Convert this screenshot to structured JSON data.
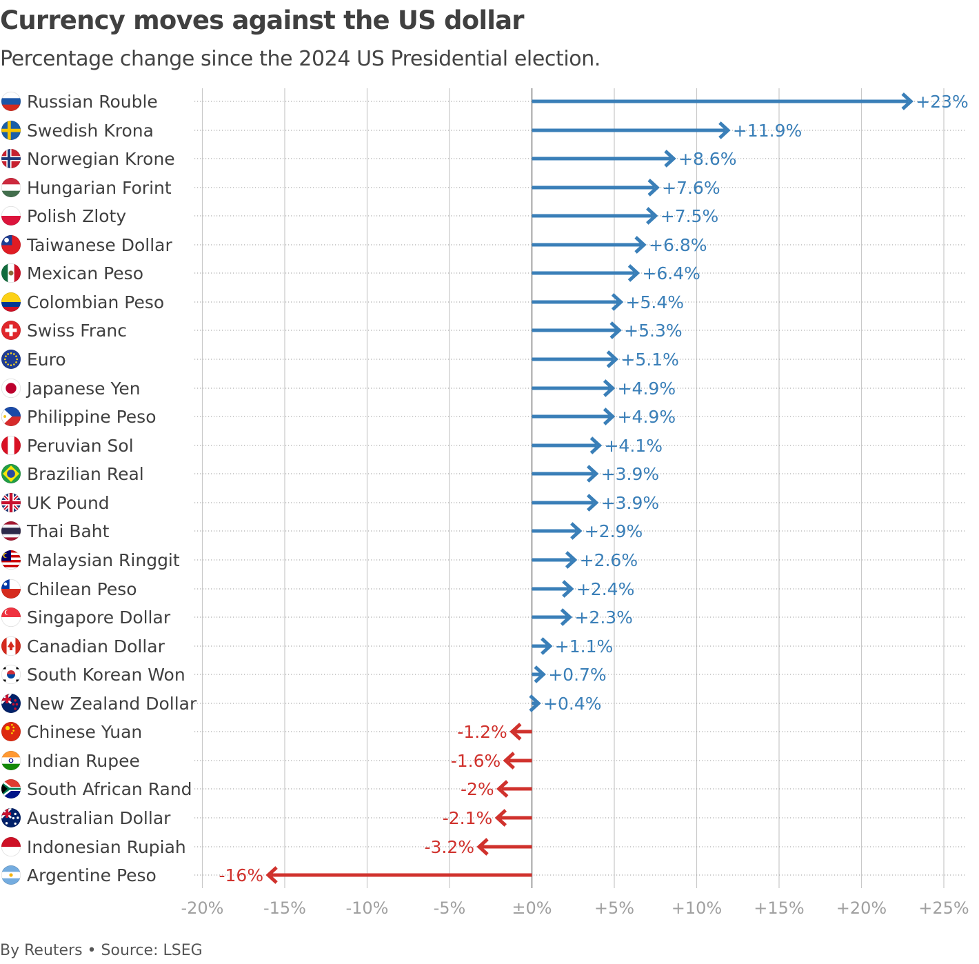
{
  "title": "Currency moves against the US dollar",
  "subtitle": "Percentage change since the 2024 US Presidential election.",
  "footer": "By Reuters • Source: LSEG",
  "colors": {
    "positive": "#3a7fb8",
    "negative": "#d0322d",
    "axis_label": "#a0a0a0",
    "grid": "#c8c8c8"
  },
  "chart_data": {
    "type": "bar",
    "orientation": "horizontal",
    "xlim": [
      -20,
      25
    ],
    "x_ticks": [
      -20,
      -15,
      -10,
      -5,
      0,
      5,
      10,
      15,
      20,
      25
    ],
    "x_tick_labels": [
      "-20%",
      "-15%",
      "-10%",
      "-5%",
      "±0%",
      "+5%",
      "+10%",
      "+15%",
      "+20%",
      "+25%"
    ],
    "grid": true,
    "rows": [
      {
        "label": "Russian Rouble",
        "value": 23,
        "value_label": "+23%",
        "flag": "russia-flag"
      },
      {
        "label": "Swedish Krona",
        "value": 11.9,
        "value_label": "+11.9%",
        "flag": "sweden-flag"
      },
      {
        "label": "Norwegian Krone",
        "value": 8.6,
        "value_label": "+8.6%",
        "flag": "norway-flag"
      },
      {
        "label": "Hungarian Forint",
        "value": 7.6,
        "value_label": "+7.6%",
        "flag": "hungary-flag"
      },
      {
        "label": "Polish Zloty",
        "value": 7.5,
        "value_label": "+7.5%",
        "flag": "poland-flag"
      },
      {
        "label": "Taiwanese Dollar",
        "value": 6.8,
        "value_label": "+6.8%",
        "flag": "taiwan-flag"
      },
      {
        "label": "Mexican Peso",
        "value": 6.4,
        "value_label": "+6.4%",
        "flag": "mexico-flag"
      },
      {
        "label": "Colombian Peso",
        "value": 5.4,
        "value_label": "+5.4%",
        "flag": "colombia-flag"
      },
      {
        "label": "Swiss Franc",
        "value": 5.3,
        "value_label": "+5.3%",
        "flag": "switzerland-flag"
      },
      {
        "label": "Euro",
        "value": 5.1,
        "value_label": "+5.1%",
        "flag": "eu-flag"
      },
      {
        "label": "Japanese Yen",
        "value": 4.9,
        "value_label": "+4.9%",
        "flag": "japan-flag"
      },
      {
        "label": "Philippine Peso",
        "value": 4.9,
        "value_label": "+4.9%",
        "flag": "philippines-flag"
      },
      {
        "label": "Peruvian Sol",
        "value": 4.1,
        "value_label": "+4.1%",
        "flag": "peru-flag"
      },
      {
        "label": "Brazilian Real",
        "value": 3.9,
        "value_label": "+3.9%",
        "flag": "brazil-flag"
      },
      {
        "label": "UK Pound",
        "value": 3.9,
        "value_label": "+3.9%",
        "flag": "uk-flag"
      },
      {
        "label": "Thai Baht",
        "value": 2.9,
        "value_label": "+2.9%",
        "flag": "thailand-flag"
      },
      {
        "label": "Malaysian Ringgit",
        "value": 2.6,
        "value_label": "+2.6%",
        "flag": "malaysia-flag"
      },
      {
        "label": "Chilean Peso",
        "value": 2.4,
        "value_label": "+2.4%",
        "flag": "chile-flag"
      },
      {
        "label": "Singapore Dollar",
        "value": 2.3,
        "value_label": "+2.3%",
        "flag": "singapore-flag"
      },
      {
        "label": "Canadian Dollar",
        "value": 1.1,
        "value_label": "+1.1%",
        "flag": "canada-flag"
      },
      {
        "label": "South Korean Won",
        "value": 0.7,
        "value_label": "+0.7%",
        "flag": "south-korea-flag"
      },
      {
        "label": "New Zealand Dollar",
        "value": 0.4,
        "value_label": "+0.4%",
        "flag": "new-zealand-flag"
      },
      {
        "label": "Chinese Yuan",
        "value": -1.2,
        "value_label": "-1.2%",
        "flag": "china-flag"
      },
      {
        "label": "Indian Rupee",
        "value": -1.6,
        "value_label": "-1.6%",
        "flag": "india-flag"
      },
      {
        "label": "South African Rand",
        "value": -2,
        "value_label": "-2%",
        "flag": "south-africa-flag"
      },
      {
        "label": "Australian Dollar",
        "value": -2.1,
        "value_label": "-2.1%",
        "flag": "australia-flag"
      },
      {
        "label": "Indonesian Rupiah",
        "value": -3.2,
        "value_label": "-3.2%",
        "flag": "indonesia-flag"
      },
      {
        "label": "Argentine Peso",
        "value": -16,
        "value_label": "-16%",
        "flag": "argentina-flag"
      }
    ]
  }
}
